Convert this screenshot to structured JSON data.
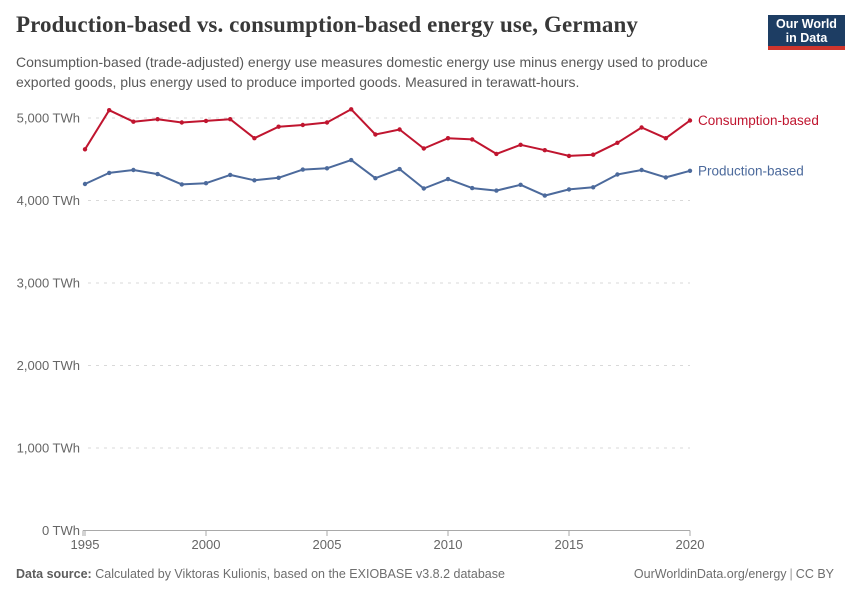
{
  "header": {
    "logo": {
      "line1": "Our World",
      "line2": "in Data"
    },
    "brand_colors": {
      "logo_background": "#1d3d63",
      "logo_accent_bar": "#d0352c"
    }
  },
  "chart_data": {
    "type": "line",
    "title": "Production-based vs. consumption-based energy use, Germany",
    "subtitle": "Consumption-based (trade-adjusted) energy use measures domestic energy use minus energy used to produce exported goods, plus energy used to produce imported goods. Measured in terawatt-hours.",
    "unit": "TWh",
    "xlabel": "",
    "ylabel": "",
    "x_axis_range": [
      1995,
      2020
    ],
    "ylim": [
      0,
      5000
    ],
    "grid": "horizontal-dashed",
    "legend": "line-end-labels",
    "x": [
      1995,
      1996,
      1997,
      1998,
      1999,
      2000,
      2001,
      2002,
      2003,
      2004,
      2005,
      2006,
      2007,
      2008,
      2009,
      2010,
      2011,
      2012,
      2013,
      2014,
      2015,
      2016,
      2017,
      2018,
      2019,
      2020
    ],
    "xticks": [
      1995,
      2000,
      2005,
      2010,
      2015,
      2020
    ],
    "yticks": [
      {
        "value": 0,
        "label": "0 TWh"
      },
      {
        "value": 1000,
        "label": "1,000 TWh"
      },
      {
        "value": 2000,
        "label": "2,000 TWh"
      },
      {
        "value": 3000,
        "label": "3,000 TWh"
      },
      {
        "value": 4000,
        "label": "4,000 TWh"
      },
      {
        "value": 5000,
        "label": "5,000 TWh"
      }
    ],
    "series": [
      {
        "name": "Consumption-based",
        "color": "#c0152f",
        "values": [
          4620,
          5095,
          4955,
          4985,
          4945,
          4965,
          4985,
          4755,
          4895,
          4915,
          4945,
          5105,
          4800,
          4860,
          4630,
          4755,
          4740,
          4565,
          4675,
          4610,
          4540,
          4555,
          4700,
          4885,
          4755,
          4970
        ]
      },
      {
        "name": "Production-based",
        "color": "#4c6a9c",
        "values": [
          4200,
          4335,
          4370,
          4320,
          4195,
          4210,
          4310,
          4245,
          4275,
          4375,
          4390,
          4490,
          4270,
          4380,
          4145,
          4260,
          4150,
          4120,
          4190,
          4060,
          4135,
          4160,
          4315,
          4370,
          4280,
          4360
        ]
      }
    ]
  },
  "footer": {
    "data_source_label": "Data source:",
    "data_source_text": "Calculated by Viktoras Kulionis, based on the EXIOBASE v3.8.2 database",
    "url": "OurWorldinData.org/energy",
    "separator": "|",
    "license": "CC BY"
  }
}
